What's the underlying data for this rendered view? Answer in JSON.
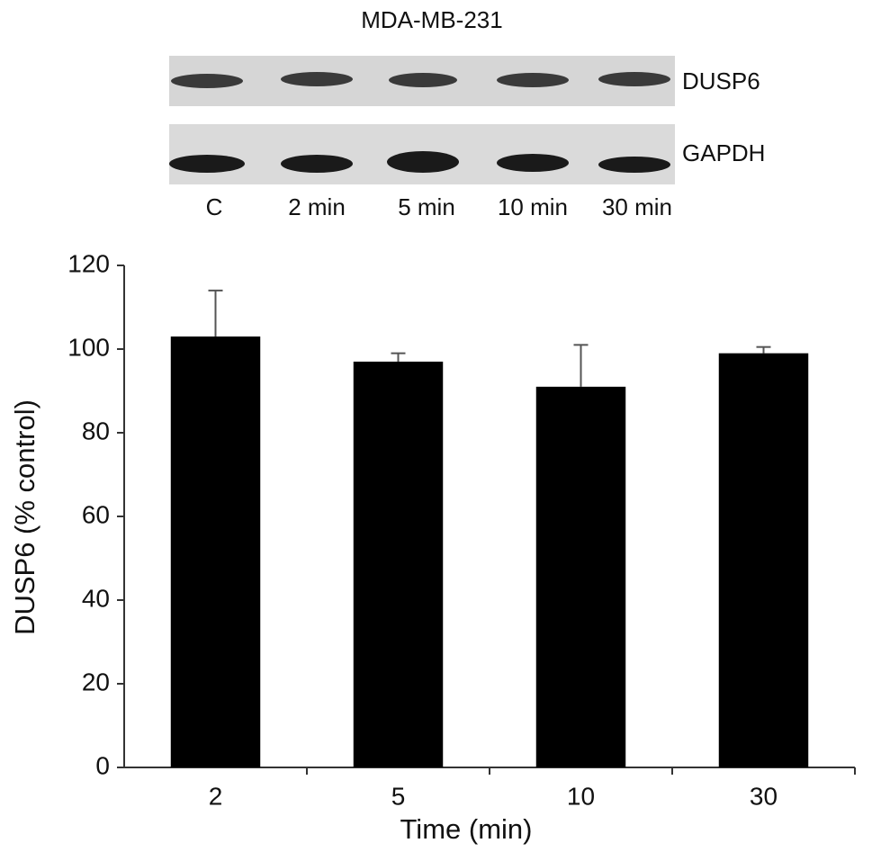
{
  "blot": {
    "title": "MDA-MB-231",
    "rows": [
      "DUSP6",
      "GAPDH"
    ],
    "lanes": [
      "C",
      "2 min",
      "5 min",
      "10 min",
      "30 min"
    ]
  },
  "chart_data": {
    "type": "bar",
    "x_label": "Time (min)",
    "y_label": "DUSP6 (% control)",
    "categories": [
      "2",
      "5",
      "10",
      "30"
    ],
    "values": [
      103,
      97,
      91,
      99
    ],
    "errors": [
      11,
      2,
      10,
      1.5
    ],
    "color": "#000000",
    "ylim": [
      0,
      120
    ],
    "yticks": [
      0,
      20,
      40,
      60,
      80,
      100,
      120
    ]
  }
}
